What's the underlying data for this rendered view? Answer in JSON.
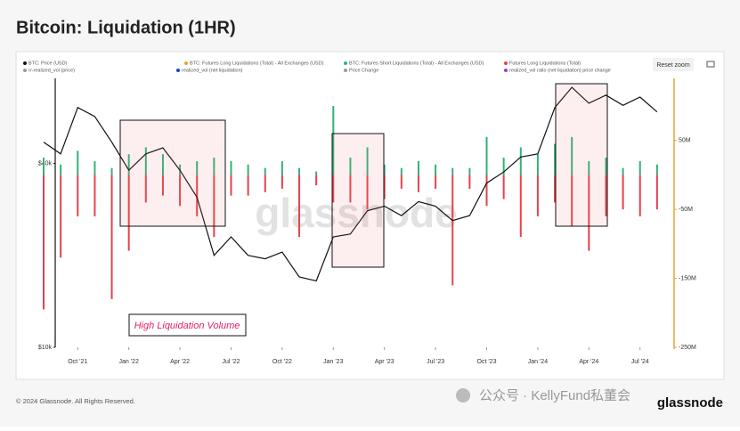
{
  "chart_data": {
    "type": "price_liquidation",
    "title": "Bitcoin: Liquidation (1HR)",
    "x": [
      "2021-08",
      "2021-09",
      "2021-10",
      "2021-11",
      "2021-12",
      "2022-01",
      "2022-02",
      "2022-03",
      "2022-04",
      "2022-05",
      "2022-06",
      "2022-07",
      "2022-08",
      "2022-09",
      "2022-10",
      "2022-11",
      "2022-12",
      "2023-01",
      "2023-02",
      "2023-03",
      "2023-04",
      "2023-05",
      "2023-06",
      "2023-07",
      "2023-08",
      "2023-09",
      "2023-10",
      "2023-11",
      "2023-12",
      "2024-01",
      "2024-02",
      "2024-03",
      "2024-04",
      "2024-05",
      "2024-06",
      "2024-07",
      "2024-08"
    ],
    "xlim": [
      "2021-08",
      "2024-09"
    ],
    "xticks": [
      {
        "value": "2021-10",
        "label": "Oct '21"
      },
      {
        "value": "2022-01",
        "label": "Jan '22"
      },
      {
        "value": "2022-04",
        "label": "Apr '22"
      },
      {
        "value": "2022-07",
        "label": "Jul '22"
      },
      {
        "value": "2022-10",
        "label": "Oct '22"
      },
      {
        "value": "2023-01",
        "label": "Jan '23"
      },
      {
        "value": "2023-04",
        "label": "Apr '23"
      },
      {
        "value": "2023-07",
        "label": "Jul '23"
      },
      {
        "value": "2023-10",
        "label": "Oct '23"
      },
      {
        "value": "2024-01",
        "label": "Jan '24"
      },
      {
        "value": "2024-04",
        "label": "Apr '24"
      },
      {
        "value": "2024-07",
        "label": "Jul '24"
      }
    ],
    "log_y": true,
    "ylim": [
      10000,
      76000
    ],
    "yticks": [
      {
        "value": 10000,
        "label": "$10k"
      },
      {
        "value": 40000,
        "label": "$40k"
      }
    ],
    "y2lim": [
      -250000000,
      140000000
    ],
    "y2ticks": [
      {
        "value": 50000000,
        "label": "50M"
      },
      {
        "value": -50000000,
        "label": "-50M"
      },
      {
        "value": -150000000,
        "label": "-150M"
      },
      {
        "value": -250000000,
        "label": "-250M"
      }
    ],
    "series": [
      {
        "name": "BTC: Price (USD)",
        "color": "#111111",
        "kind": "line",
        "values": [
          47000,
          43000,
          61000,
          57000,
          47000,
          38000,
          43000,
          45000,
          38000,
          31000,
          20000,
          23000,
          20000,
          19500,
          20500,
          17000,
          16500,
          23000,
          23500,
          28000,
          29000,
          27000,
          30000,
          29000,
          26000,
          27000,
          34500,
          37500,
          42000,
          43000,
          61000,
          71000,
          63000,
          67000,
          62000,
          66000,
          59000
        ]
      },
      {
        "name": "BTC: Futures Short Liquidations (Total) - All Exchanges (USD)",
        "color": "#2fb37a",
        "kind": "bar",
        "axis": "y2",
        "values": [
          25000000,
          15000000,
          35000000,
          20000000,
          10000000,
          30000000,
          40000000,
          30000000,
          15000000,
          20000000,
          25000000,
          20000000,
          15000000,
          10000000,
          20000000,
          10000000,
          5000000,
          100000000,
          25000000,
          40000000,
          15000000,
          10000000,
          20000000,
          15000000,
          10000000,
          10000000,
          55000000,
          25000000,
          40000000,
          30000000,
          45000000,
          55000000,
          20000000,
          25000000,
          10000000,
          20000000,
          15000000
        ]
      },
      {
        "name": "Futures Long Liquidations (Total)",
        "color": "#e8414a",
        "kind": "bar",
        "axis": "y2",
        "values": [
          -195000000,
          -120000000,
          -60000000,
          -60000000,
          -180000000,
          -110000000,
          -40000000,
          -30000000,
          -45000000,
          -60000000,
          -90000000,
          -30000000,
          -30000000,
          -25000000,
          -20000000,
          -90000000,
          -15000000,
          -40000000,
          -40000000,
          -50000000,
          -35000000,
          -20000000,
          -25000000,
          -20000000,
          -160000000,
          -20000000,
          -45000000,
          -35000000,
          -90000000,
          -60000000,
          -40000000,
          -75000000,
          -110000000,
          -60000000,
          -50000000,
          -60000000,
          -50000000
        ]
      }
    ],
    "legend_items": [
      {
        "name": "BTC: Futures Long Liquidations (Total) - All Exchanges (USD)",
        "color": "#f0a030"
      },
      {
        "name": "rr-realized_vol (price)",
        "color": "#999999"
      },
      {
        "name": "realized_vol (net liquidation)",
        "color": "#2040c0"
      },
      {
        "name": "Price Change",
        "color": "#999999"
      },
      {
        "name": "realized_vol ratio (net liquidation) price change",
        "color": "#a040c0"
      }
    ],
    "annotation": "High Liquidation Volume",
    "reset_button": "Reset zoom",
    "watermark": "glassnode",
    "footer": "© 2024 Glassnode. All Rights Reserved.",
    "brand": "glassnode",
    "wechat": "公众号 · KellyFund私董会"
  }
}
